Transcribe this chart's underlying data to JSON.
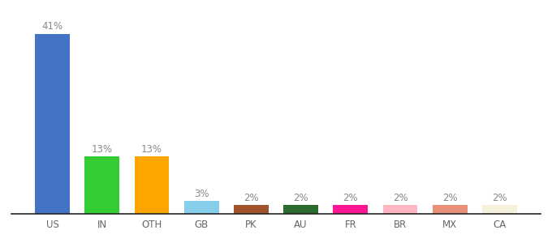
{
  "categories": [
    "US",
    "IN",
    "OTH",
    "GB",
    "PK",
    "AU",
    "FR",
    "BR",
    "MX",
    "CA"
  ],
  "values": [
    41,
    13,
    13,
    3,
    2,
    2,
    2,
    2,
    2,
    2
  ],
  "bar_colors": [
    "#4472C4",
    "#33CC33",
    "#FFA500",
    "#87CEEB",
    "#A0522D",
    "#2D6A2D",
    "#FF1493",
    "#FFB6C1",
    "#E8907A",
    "#F5F0DC"
  ],
  "label_fontsize": 8.5,
  "tick_fontsize": 8.5,
  "label_color": "#888888",
  "tick_color": "#666666",
  "background_color": "#ffffff",
  "ylim": [
    0,
    47
  ],
  "bar_width": 0.7
}
